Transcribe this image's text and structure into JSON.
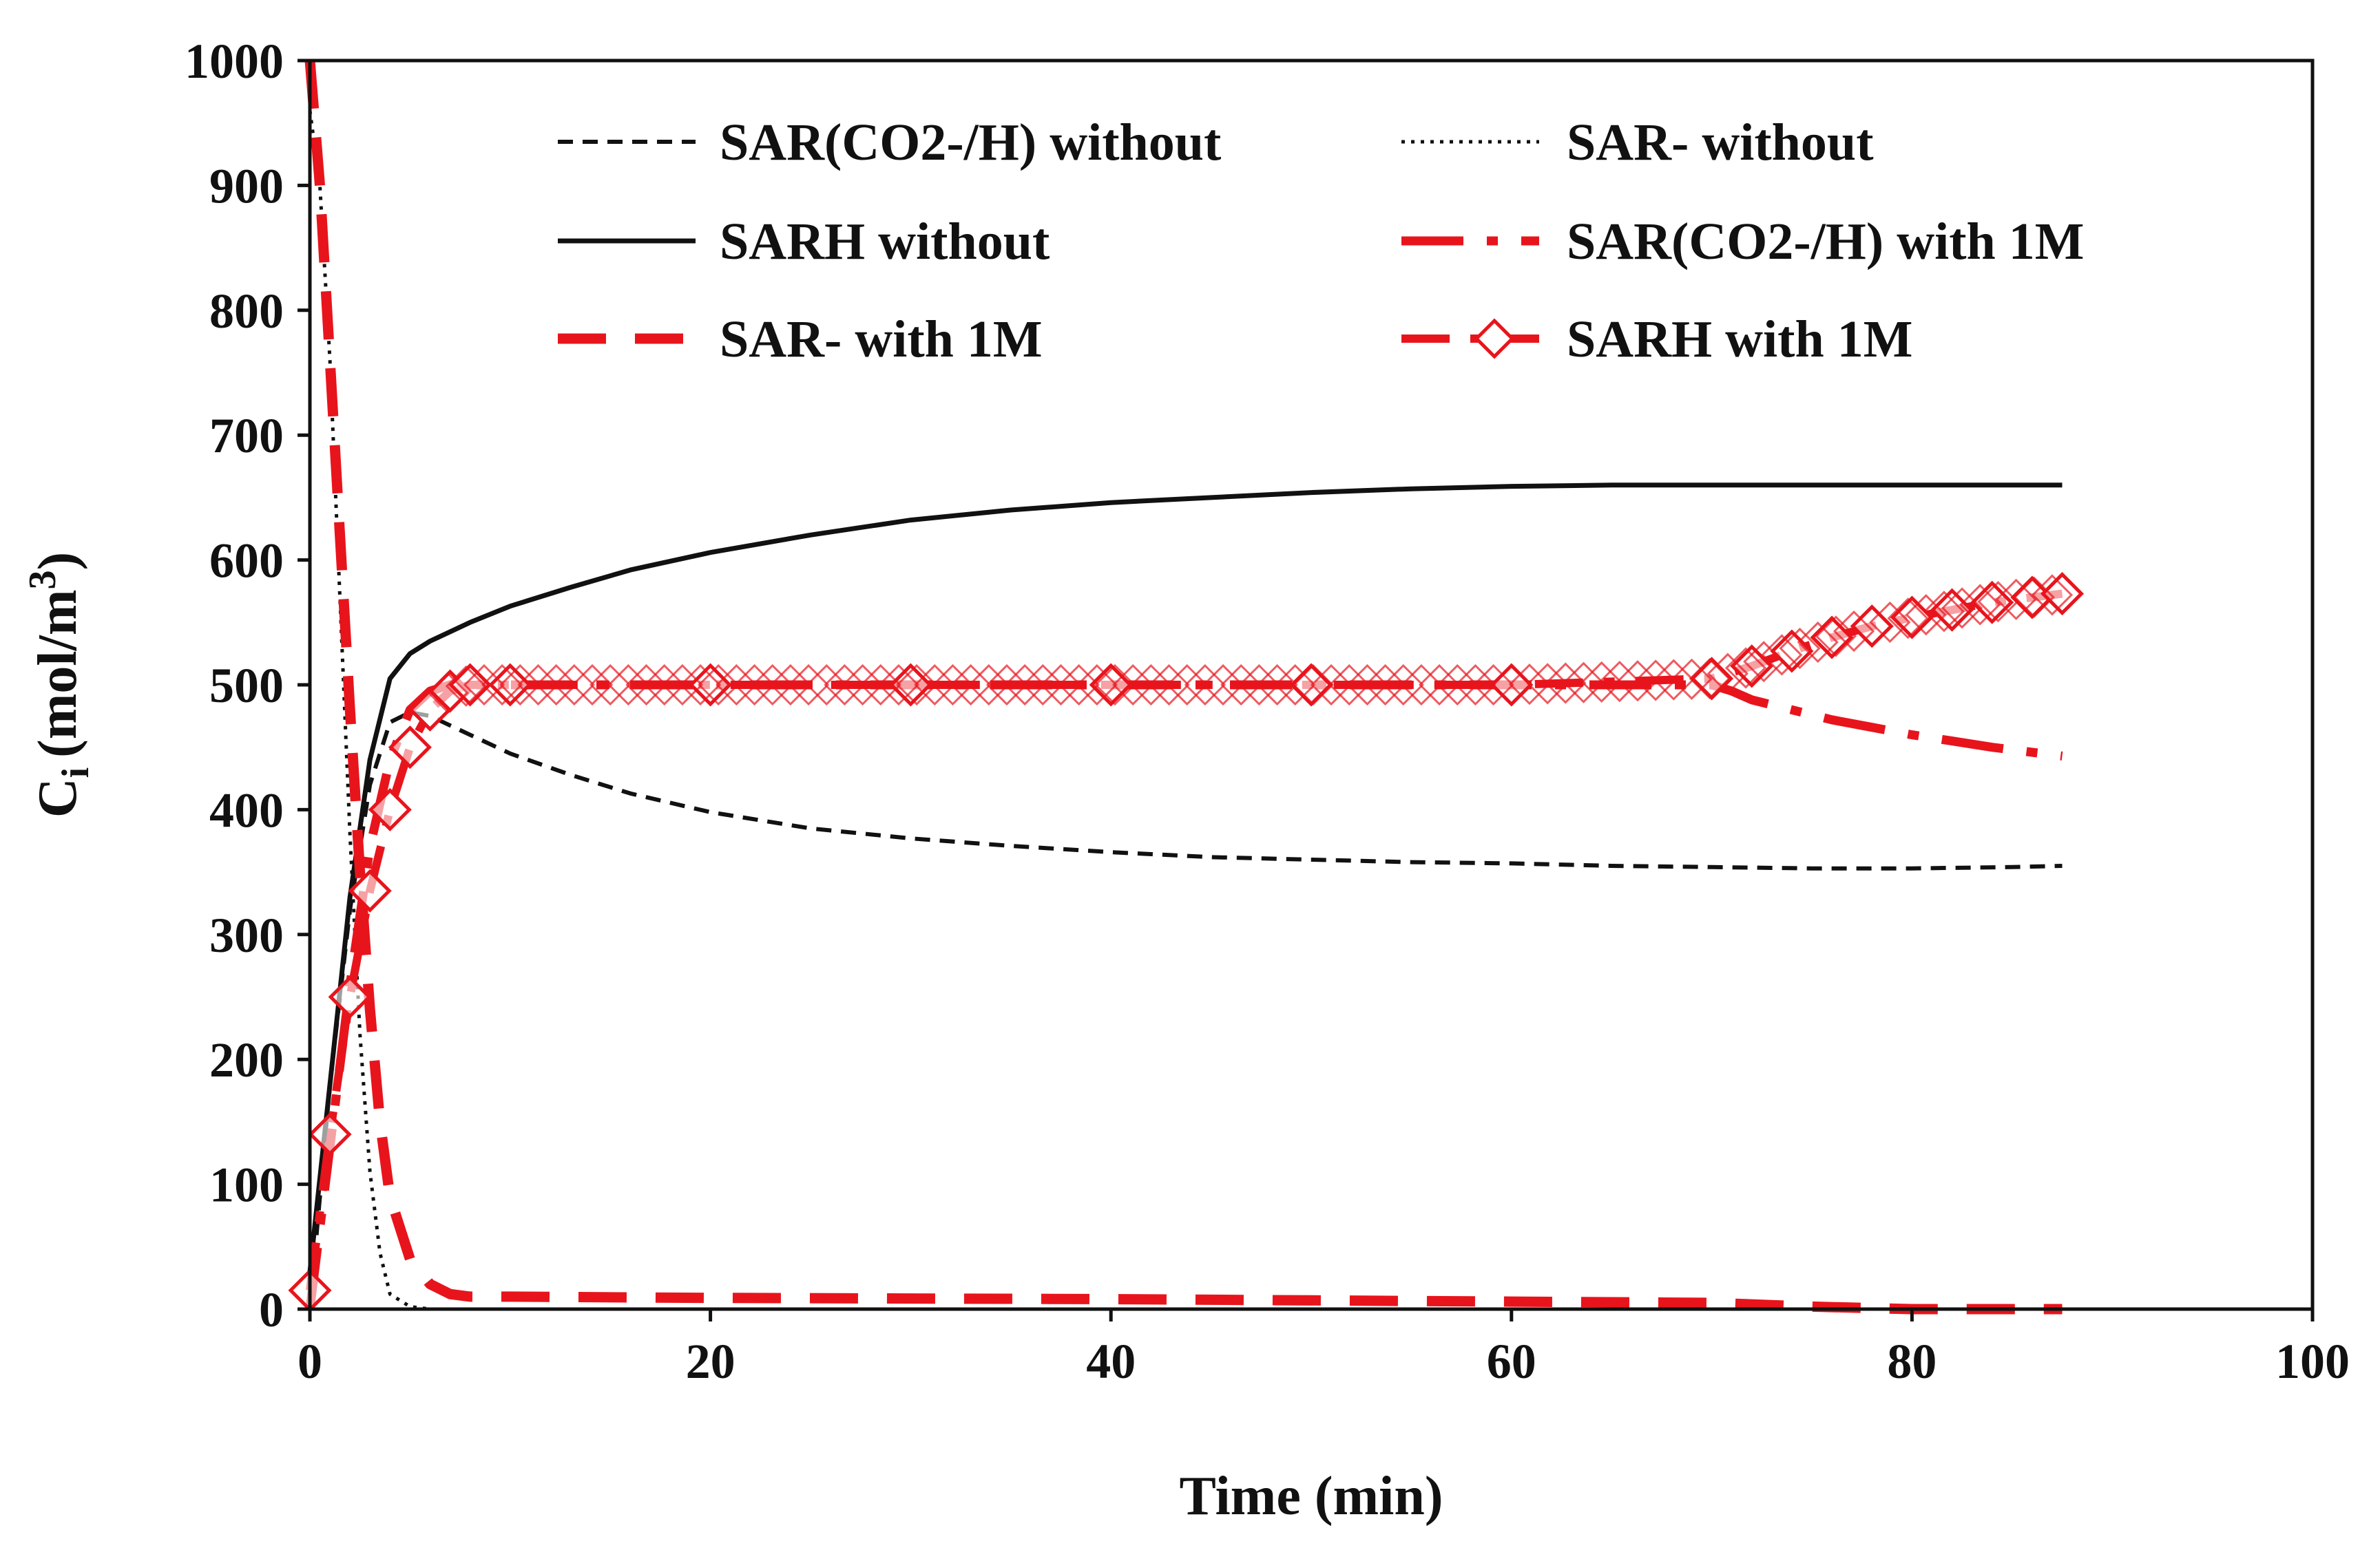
{
  "chart_data": {
    "type": "line",
    "title": "",
    "xlabel": "Time (min)",
    "ylabel": "C",
    "ylabel_sub": "i",
    "ylabel_unit": "(mol/m",
    "ylabel_unit_sup": "3",
    "ylabel_close": ")",
    "xlim": [
      0,
      100
    ],
    "ylim": [
      0,
      1000
    ],
    "x_ticks": [
      "0",
      "20",
      "40",
      "60",
      "80",
      "100"
    ],
    "y_ticks": [
      "0",
      "100",
      "200",
      "300",
      "400",
      "500",
      "600",
      "700",
      "800",
      "900",
      "1000"
    ],
    "grid": false,
    "legend_position": "top-right, two columns, inside plot",
    "series": [
      {
        "name": "SAR(CO2-/H) without",
        "color": "#111111",
        "style": "short-dash",
        "x": [
          0,
          1,
          2,
          3,
          4,
          5,
          6,
          8,
          10,
          13,
          16,
          20,
          25,
          30,
          35,
          40,
          45,
          50,
          55,
          60,
          65,
          70,
          75,
          80,
          85,
          87.5
        ],
        "y": [
          0,
          180,
          320,
          420,
          470,
          478,
          475,
          460,
          445,
          428,
          413,
          398,
          385,
          377,
          371,
          366,
          362,
          360,
          358,
          357,
          355,
          354,
          353,
          353,
          354,
          355
        ]
      },
      {
        "name": "SAR- without",
        "color": "#111111",
        "style": "dotted",
        "x": [
          0,
          0.5,
          1,
          1.5,
          2,
          2.5,
          3,
          3.5,
          4,
          5,
          6,
          10,
          20,
          40,
          60,
          80,
          87.5
        ],
        "y": [
          960,
          900,
          760,
          570,
          380,
          220,
          110,
          45,
          12,
          2,
          0,
          0,
          0,
          0,
          0,
          0,
          0
        ]
      },
      {
        "name": "SARH without",
        "color": "#111111",
        "style": "solid",
        "x": [
          0,
          1,
          2,
          3,
          4,
          5,
          6,
          8,
          10,
          13,
          16,
          20,
          25,
          30,
          35,
          40,
          45,
          50,
          55,
          60,
          65,
          70,
          75,
          80,
          85,
          87.5
        ],
        "y": [
          30,
          180,
          330,
          440,
          505,
          525,
          535,
          550,
          563,
          578,
          592,
          606,
          620,
          632,
          640,
          646,
          650,
          654,
          657,
          659,
          660,
          660,
          660,
          660,
          660,
          660
        ]
      },
      {
        "name": "SAR(CO2-/H) with 1M",
        "color": "#e8141c",
        "style": "long-dash-dot",
        "x": [
          0,
          1,
          2,
          3,
          4,
          5,
          6,
          7,
          8,
          10,
          20,
          30,
          40,
          50,
          60,
          70,
          71,
          72,
          74,
          76,
          78,
          80,
          82,
          84,
          86,
          87.5
        ],
        "y": [
          0,
          130,
          260,
          370,
          440,
          480,
          495,
          500,
          500,
          500,
          500,
          500,
          500,
          500,
          500,
          500,
          495,
          488,
          480,
          472,
          466,
          460,
          455,
          450,
          446,
          443
        ]
      },
      {
        "name": "SAR- with 1M",
        "color": "#e8141c",
        "style": "long-dash",
        "x": [
          0,
          0.5,
          1,
          1.5,
          2,
          2.5,
          3,
          3.5,
          4,
          5,
          6,
          7,
          8,
          10,
          20,
          40,
          60,
          70,
          75,
          80,
          87.5
        ],
        "y": [
          1000,
          900,
          760,
          620,
          480,
          350,
          240,
          150,
          90,
          40,
          20,
          12,
          10,
          10,
          9,
          8,
          6,
          5,
          2,
          0,
          0
        ]
      },
      {
        "name": "SARH with 1M",
        "color": "#e8141c",
        "style": "dash-dot-diamond",
        "x": [
          0,
          1,
          2,
          3,
          4,
          5,
          6,
          7,
          8,
          10,
          20,
          30,
          40,
          50,
          60,
          70,
          72,
          74,
          76,
          78,
          80,
          82,
          84,
          86,
          87.5
        ],
        "y": [
          15,
          140,
          250,
          335,
          400,
          450,
          480,
          495,
          500,
          500,
          500,
          500,
          500,
          500,
          500,
          505,
          515,
          527,
          538,
          547,
          554,
          560,
          566,
          570,
          573
        ]
      }
    ]
  }
}
